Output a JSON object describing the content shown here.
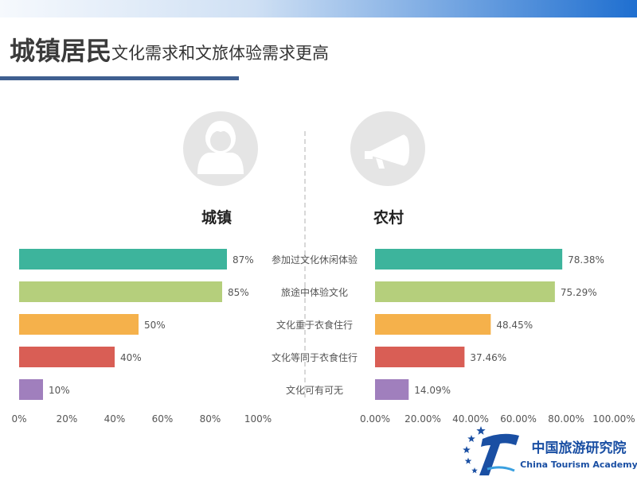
{
  "page": {
    "title_bold": "城镇居民",
    "title_rest": "文化需求和文旅体验需求更高"
  },
  "colors": {
    "top_band": "#1f6fd0",
    "rule": "#3f5f90",
    "circle": "#e5e5e5",
    "icon": "#ffffff",
    "divider": "#b0b0b0",
    "text": "#555555"
  },
  "chart_data": [
    {
      "type": "bar",
      "title": "城镇",
      "orientation": "horizontal",
      "direction": "left-to-right",
      "categories": [
        "参加过文化休闲体验",
        "旅途中体验文化",
        "文化重于衣食住行",
        "文化等同于衣食住行",
        "文化可有可无"
      ],
      "values": [
        87,
        85,
        50,
        40,
        10
      ],
      "value_labels": [
        "87%",
        "85%",
        "50%",
        "40%",
        "10%"
      ],
      "colors": [
        "#3db49c",
        "#b5cf7c",
        "#f5b14b",
        "#d95e55",
        "#a07fbd"
      ],
      "xlim": [
        0,
        100
      ],
      "xticks": [
        0,
        20,
        40,
        60,
        80,
        100
      ],
      "xtick_labels": [
        "0%",
        "20%",
        "40%",
        "60%",
        "80%",
        "100%"
      ],
      "icon": "person-icon"
    },
    {
      "type": "bar",
      "title": "农村",
      "orientation": "horizontal",
      "direction": "left-to-right",
      "categories": [
        "参加过文化休闲体验",
        "旅途中体验文化",
        "文化重于衣食住行",
        "文化等同于衣食住行",
        "文化可有可无"
      ],
      "values": [
        78.38,
        75.29,
        48.45,
        37.46,
        14.09
      ],
      "value_labels": [
        "78.38%",
        "75.29%",
        "48.45%",
        "37.46%",
        "14.09%"
      ],
      "colors": [
        "#3db49c",
        "#b5cf7c",
        "#f5b14b",
        "#d95e55",
        "#a07fbd"
      ],
      "xlim": [
        0,
        100
      ],
      "xticks": [
        0,
        20,
        40,
        60,
        80,
        100
      ],
      "xtick_labels": [
        "0.00%",
        "20.00%",
        "40.00%",
        "60.00%",
        "80.00%",
        "100.00%"
      ],
      "icon": "megaphone-icon"
    }
  ],
  "logo": {
    "name": "中国旅游研究院",
    "name_en": "China Tourism Academy",
    "color": "#1a4fa3",
    "icon": "academy-logo-icon"
  }
}
